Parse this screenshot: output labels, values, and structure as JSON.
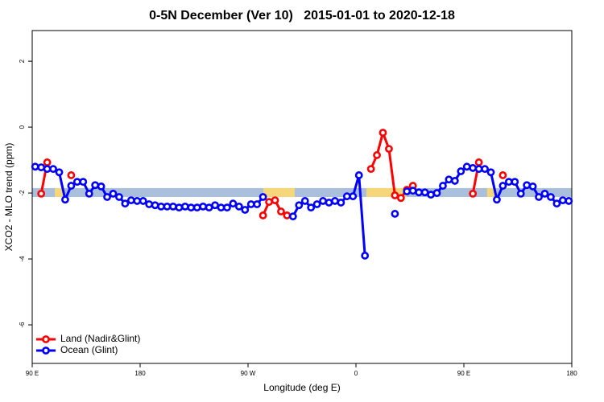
{
  "chart_data": {
    "type": "line",
    "title": "0-5N December (Ver 10)   2015-01-01 to 2020-12-18",
    "xlabel": "Longitude (deg E)",
    "ylabel": "XCO2 - MLO trend (ppm)",
    "xlim": [
      90,
      540
    ],
    "xticks": [
      {
        "value": 90,
        "label": "90 E"
      },
      {
        "value": 180,
        "label": "180"
      },
      {
        "value": 270,
        "label": "90 W"
      },
      {
        "value": 360,
        "label": "0"
      },
      {
        "value": 450,
        "label": "90 E"
      },
      {
        "value": 540,
        "label": "180"
      }
    ],
    "ylim": [
      -7.17,
      2.93
    ],
    "yticks": [
      -6,
      -4,
      -2,
      0,
      2
    ],
    "legend": "bottom-left",
    "background_band": {
      "ylim": [
        -2.12,
        -1.85
      ],
      "color": "#a9bfdc",
      "segments": [
        {
          "x": [
            108.8,
            116.9
          ],
          "color": "#f5d67a"
        },
        {
          "x": [
            282.7,
            308.9
          ],
          "color": "#f5d67a"
        },
        {
          "x": [
            368.7,
            402.3
          ],
          "color": "#f5d67a"
        },
        {
          "x": [
            469.4,
            476.2
          ],
          "color": "#f5d67a"
        }
      ]
    },
    "x": [
      92.5,
      97.5,
      102.5,
      107.5,
      112.5,
      117.5,
      122.5,
      127.5,
      132.5,
      137.5,
      142.5,
      147.5,
      152.5,
      157.5,
      162.5,
      167.5,
      172.5,
      177.5,
      182.5,
      187.5,
      192.5,
      197.5,
      202.5,
      207.5,
      212.5,
      217.5,
      222.5,
      227.5,
      232.5,
      237.5,
      242.5,
      247.5,
      252.5,
      257.5,
      262.5,
      267.5,
      272.5,
      277.5,
      282.5,
      287.5,
      292.5,
      297.5,
      302.5,
      307.5,
      312.5,
      317.5,
      322.5,
      327.5,
      332.5,
      337.5,
      342.5,
      347.5,
      352.5,
      357.5,
      362.5,
      367.5,
      372.5,
      377.5,
      382.5,
      387.5,
      392.5,
      397.5,
      402.5,
      407.5,
      412.5,
      417.5,
      422.5,
      427.5,
      432.5,
      437.5,
      442.5,
      447.5,
      452.5,
      457.5,
      462.5,
      467.5,
      472.5,
      477.5,
      482.5,
      487.5,
      492.5,
      497.5,
      502.5,
      507.5,
      512.5,
      517.5,
      522.5,
      527.5,
      532.5,
      537.5
    ],
    "series": [
      {
        "name": "Land (Nadir&Glint)",
        "color": "#ff0000",
        "values": [
          null,
          -2.02,
          -1.07,
          null,
          null,
          null,
          -1.46,
          null,
          null,
          null,
          null,
          null,
          null,
          null,
          null,
          null,
          null,
          null,
          null,
          null,
          null,
          null,
          null,
          null,
          null,
          null,
          null,
          null,
          null,
          null,
          null,
          null,
          null,
          null,
          null,
          null,
          null,
          null,
          -2.68,
          -2.27,
          -2.22,
          -2.56,
          -2.68,
          null,
          null,
          null,
          null,
          null,
          null,
          null,
          null,
          null,
          null,
          null,
          null,
          null,
          -1.27,
          -0.85,
          -0.17,
          -0.66,
          -2.07,
          -2.15,
          -1.9,
          -1.78,
          null,
          null,
          null,
          null,
          null,
          null,
          null,
          null,
          null,
          -2.02,
          -1.07,
          null,
          null,
          null,
          -1.46,
          null,
          null,
          null,
          null,
          null,
          null,
          null,
          null,
          null,
          null,
          null
        ]
      },
      {
        "name": "Ocean (Glint)",
        "color": "#0000ff",
        "values": [
          -1.2,
          -1.22,
          -1.27,
          -1.27,
          -1.37,
          -2.2,
          -1.78,
          -1.66,
          -1.66,
          -2.02,
          -1.76,
          -1.8,
          -2.12,
          -2.02,
          -2.12,
          -2.32,
          -2.22,
          -2.24,
          -2.24,
          -2.34,
          -2.37,
          -2.41,
          -2.41,
          -2.41,
          -2.44,
          -2.41,
          -2.44,
          -2.44,
          -2.41,
          -2.44,
          -2.37,
          -2.44,
          -2.44,
          -2.32,
          -2.41,
          -2.51,
          -2.34,
          -2.34,
          -2.12,
          null,
          null,
          null,
          null,
          -2.71,
          -2.37,
          -2.24,
          -2.44,
          -2.34,
          -2.24,
          -2.29,
          -2.24,
          -2.29,
          -2.1,
          -2.1,
          -1.46,
          -3.9,
          null,
          null,
          null,
          null,
          -2.63,
          null,
          -1.95,
          -1.93,
          -1.98,
          -1.98,
          -2.05,
          -2.0,
          -1.78,
          -1.59,
          -1.63,
          -1.34,
          -1.2,
          -1.24,
          -1.27,
          -1.27,
          -1.37,
          -2.2,
          -1.78,
          -1.66,
          -1.66,
          -2.02,
          -1.76,
          -1.8,
          -2.12,
          -2.02,
          -2.12,
          -2.32,
          -2.22,
          -2.24
        ]
      }
    ]
  }
}
